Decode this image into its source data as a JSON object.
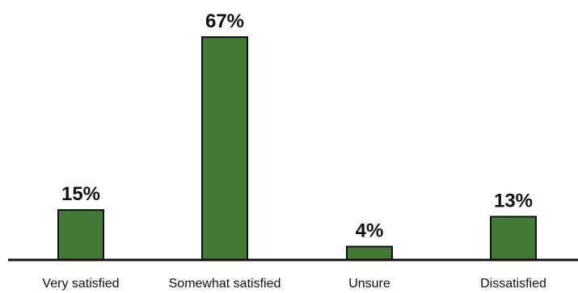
{
  "chart_data": {
    "type": "bar",
    "title": "",
    "xlabel": "",
    "ylabel": "",
    "categories": [
      "Very satisfied",
      "Somewhat satisfied",
      "Unsure",
      "Dissatisfied"
    ],
    "values": [
      15,
      67,
      4,
      13
    ],
    "value_labels": [
      "15%",
      "67%",
      "4%",
      "13%"
    ],
    "ylim": [
      0,
      67
    ],
    "grid": false,
    "legend": "none",
    "colors": {
      "bar_fill": "#437a38",
      "bar_stroke": "#111111",
      "axis": "#111111",
      "text": "#111111"
    }
  }
}
